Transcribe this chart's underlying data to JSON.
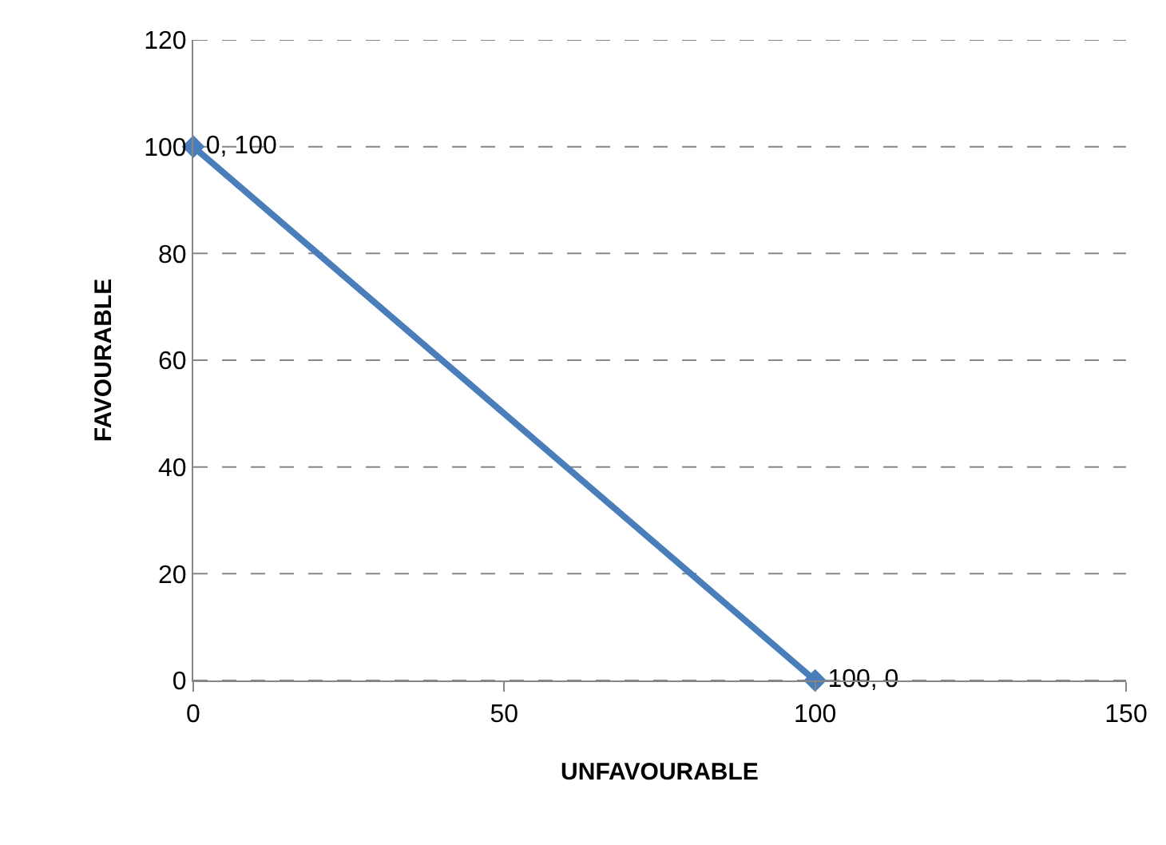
{
  "chart_data": {
    "type": "line",
    "xlabel": "UNFAVOURABLE",
    "ylabel": "FAVOURABLE",
    "x": [
      0,
      100
    ],
    "series": [
      {
        "color": "#4a7ebb",
        "values": [
          100,
          0
        ],
        "value_labels": [
          "0, 100",
          "100, 0"
        ]
      }
    ],
    "xlim": [
      0,
      150
    ],
    "xticks": [
      0,
      50,
      100,
      150
    ],
    "ylim": [
      0,
      120
    ],
    "yticks": [
      0,
      20,
      40,
      60,
      80,
      100,
      120
    ],
    "grid": "y",
    "marker": "diamond",
    "line_style": "solid"
  }
}
